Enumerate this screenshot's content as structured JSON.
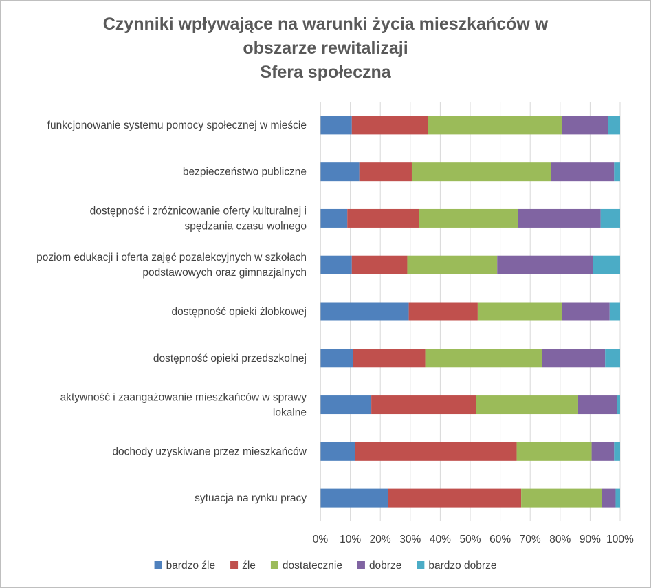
{
  "chart_data": {
    "type": "bar",
    "orientation": "horizontal",
    "stacked": "percent",
    "title_lines": [
      "Czynniki wpływające na warunki życia mieszkańców w",
      "obszarze rewitalizaji",
      "Sfera społeczna"
    ],
    "categories": [
      [
        "funkcjonowanie systemu pomocy społecznej w mieście"
      ],
      [
        "bezpieczeństwo publiczne"
      ],
      [
        "dostępność i zróżnicowanie oferty kulturalnej i",
        "spędzania czasu wolnego"
      ],
      [
        "poziom edukacji i oferta zajęć pozalekcyjnych w szkołach",
        "podstawowych oraz gimnazjalnych"
      ],
      [
        "dostępność opieki żłobkowej"
      ],
      [
        "dostępność opieki przedszkolnej"
      ],
      [
        "aktywność i zaangażowanie mieszkańców w sprawy",
        "lokalne"
      ],
      [
        "dochody uzyskiwane przez mieszkańców"
      ],
      [
        "sytuacja na rynku pracy"
      ]
    ],
    "series": [
      {
        "name": "bardzo źle",
        "color": "#4f81bd",
        "values": [
          10.5,
          13,
          9,
          10.5,
          29.5,
          11,
          17,
          11.5,
          22.5
        ]
      },
      {
        "name": "źle",
        "color": "#c0504d",
        "values": [
          25.5,
          17.5,
          24,
          18.5,
          23,
          24,
          35,
          54,
          44.5
        ]
      },
      {
        "name": "dostatecznie",
        "color": "#9bbb59",
        "values": [
          44.5,
          46.5,
          33,
          30,
          28,
          39,
          34,
          25,
          27
        ]
      },
      {
        "name": "dobrze",
        "color": "#8064a2",
        "values": [
          15.5,
          21,
          27.5,
          32,
          16,
          21,
          13,
          7.5,
          4.5
        ]
      },
      {
        "name": "bardzo dobrze",
        "color": "#4bacc6",
        "values": [
          4,
          2,
          6.5,
          9,
          3.5,
          5,
          1,
          2,
          1.5
        ]
      }
    ],
    "x_ticks": [
      "0%",
      "10%",
      "20%",
      "30%",
      "40%",
      "50%",
      "60%",
      "70%",
      "80%",
      "90%",
      "100%"
    ],
    "xlim": [
      0,
      100
    ],
    "grid": true,
    "legend_position": "bottom"
  }
}
